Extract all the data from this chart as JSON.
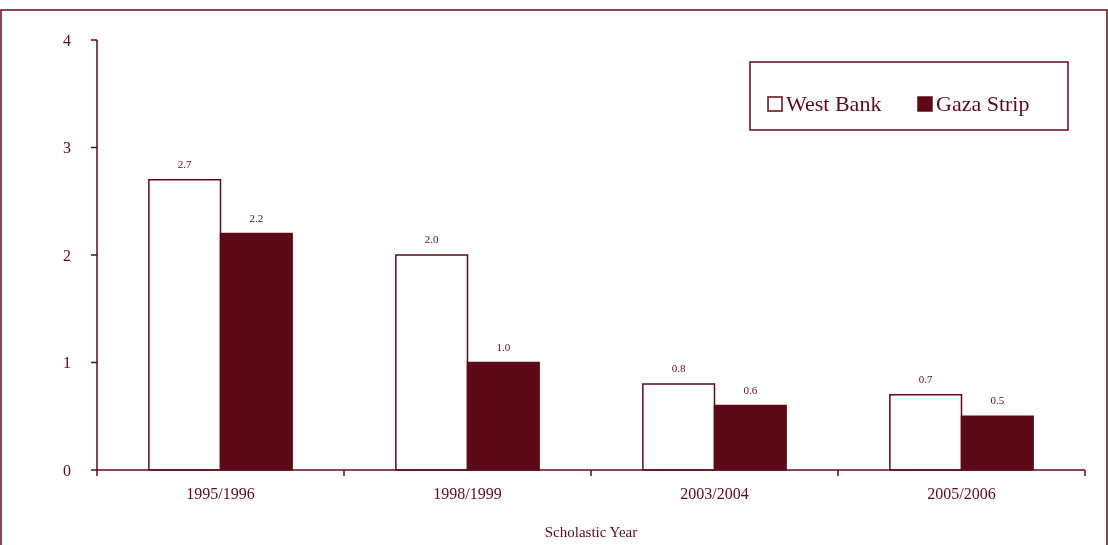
{
  "chart_data": {
    "type": "bar",
    "xlabel": "Scholastic Year",
    "categories": [
      "1995/1996",
      "1998/1999",
      "2003/2004",
      "2005/2006"
    ],
    "series": [
      {
        "name": "West Bank",
        "color": "#ffffff",
        "values": [
          2.7,
          2.0,
          0.8,
          0.7
        ],
        "value_labels": [
          "2.7",
          "2.0",
          "0.8",
          "0.7"
        ]
      },
      {
        "name": "Gaza Strip",
        "color": "#5c0a18",
        "values": [
          2.2,
          1.0,
          0.6,
          0.5
        ],
        "value_labels": [
          "2.2",
          "1.0",
          "0.6",
          "0.5"
        ]
      }
    ],
    "ylim": [
      0,
      4
    ],
    "yticks": [
      0,
      1,
      2,
      3,
      4
    ],
    "legend": "top right",
    "grid": false
  }
}
